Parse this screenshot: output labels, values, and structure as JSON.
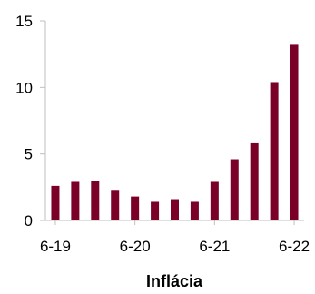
{
  "chart_data": {
    "type": "bar",
    "title": "",
    "xlabel": "Inflácia",
    "ylabel": "",
    "ylim": [
      0,
      15
    ],
    "yticks": [
      0,
      5,
      10,
      15
    ],
    "xtick_labels": [
      "6-19",
      "6-20",
      "6-21",
      "6-22"
    ],
    "grid": false,
    "legend": "none",
    "series": [
      {
        "color": "#7b0028",
        "values": [
          2.6,
          2.9,
          3.0,
          2.3,
          1.8,
          1.4,
          1.6,
          1.4,
          2.9,
          4.6,
          5.8,
          10.4,
          13.2
        ]
      }
    ]
  }
}
